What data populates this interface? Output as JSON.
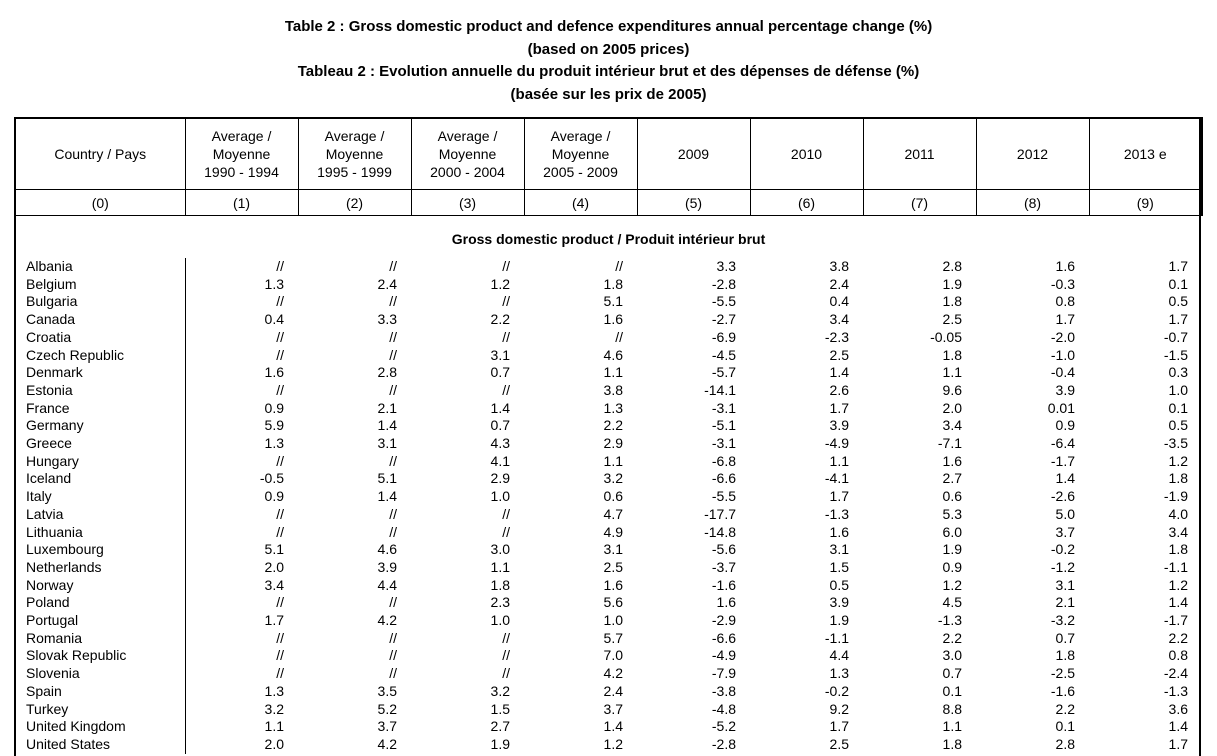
{
  "titles": {
    "line1": "Table 2 : Gross domestic product and defence expenditures annual percentage change (%)",
    "line2": "(based on 2005 prices)",
    "line3": "Tableau 2 : Evolution annuelle du produit intérieur brut et des dépenses de défense (%)",
    "line4": "(basée sur les prix de 2005)"
  },
  "headers": [
    [
      "Country  /  Pays"
    ],
    [
      "Average  /",
      "Moyenne",
      "1990 - 1994"
    ],
    [
      "Average  /",
      "Moyenne",
      "1995 - 1999"
    ],
    [
      "Average  /",
      "Moyenne",
      "2000 - 2004"
    ],
    [
      "Average  /",
      "Moyenne",
      "2005 - 2009"
    ],
    [
      "2009"
    ],
    [
      "2010"
    ],
    [
      "2011"
    ],
    [
      "2012"
    ],
    [
      "2013 e"
    ]
  ],
  "column_numbers": [
    "(0)",
    "(1)",
    "(2)",
    "(3)",
    "(4)",
    "(5)",
    "(6)",
    "(7)",
    "(8)",
    "(9)"
  ],
  "section_title": "Gross domestic product   /   Produit intérieur brut",
  "rows": [
    [
      "Albania",
      "//",
      "//",
      "//",
      "//",
      "3.3",
      "3.8",
      "2.8",
      "1.6",
      "1.7"
    ],
    [
      "Belgium",
      "1.3",
      "2.4",
      "1.2",
      "1.8",
      "-2.8",
      "2.4",
      "1.9",
      "-0.3",
      "0.1"
    ],
    [
      "Bulgaria",
      "//",
      "//",
      "//",
      "5.1",
      "-5.5",
      "0.4",
      "1.8",
      "0.8",
      "0.5"
    ],
    [
      "Canada",
      "0.4",
      "3.3",
      "2.2",
      "1.6",
      "-2.7",
      "3.4",
      "2.5",
      "1.7",
      "1.7"
    ],
    [
      "Croatia",
      "//",
      "//",
      "//",
      "//",
      "-6.9",
      "-2.3",
      "-0.05",
      "-2.0",
      "-0.7"
    ],
    [
      "Czech Republic",
      "//",
      "//",
      "3.1",
      "4.6",
      "-4.5",
      "2.5",
      "1.8",
      "-1.0",
      "-1.5"
    ],
    [
      "Denmark",
      "1.6",
      "2.8",
      "0.7",
      "1.1",
      "-5.7",
      "1.4",
      "1.1",
      "-0.4",
      "0.3"
    ],
    [
      "Estonia",
      "//",
      "//",
      "//",
      "3.8",
      "-14.1",
      "2.6",
      "9.6",
      "3.9",
      "1.0"
    ],
    [
      "France",
      "0.9",
      "2.1",
      "1.4",
      "1.3",
      "-3.1",
      "1.7",
      "2.0",
      "0.01",
      "0.1"
    ],
    [
      "Germany",
      "5.9",
      "1.4",
      "0.7",
      "2.2",
      "-5.1",
      "3.9",
      "3.4",
      "0.9",
      "0.5"
    ],
    [
      "Greece",
      "1.3",
      "3.1",
      "4.3",
      "2.9",
      "-3.1",
      "-4.9",
      "-7.1",
      "-6.4",
      "-3.5"
    ],
    [
      "Hungary",
      "//",
      "//",
      "4.1",
      "1.1",
      "-6.8",
      "1.1",
      "1.6",
      "-1.7",
      "1.2"
    ],
    [
      "Iceland",
      "-0.5",
      "5.1",
      "2.9",
      "3.2",
      "-6.6",
      "-4.1",
      "2.7",
      "1.4",
      "1.8"
    ],
    [
      "Italy",
      "0.9",
      "1.4",
      "1.0",
      "0.6",
      "-5.5",
      "1.7",
      "0.6",
      "-2.6",
      "-1.9"
    ],
    [
      "Latvia",
      "//",
      "//",
      "//",
      "4.7",
      "-17.7",
      "-1.3",
      "5.3",
      "5.0",
      "4.0"
    ],
    [
      "Lithuania",
      "//",
      "//",
      "//",
      "4.9",
      "-14.8",
      "1.6",
      "6.0",
      "3.7",
      "3.4"
    ],
    [
      "Luxembourg",
      "5.1",
      "4.6",
      "3.0",
      "3.1",
      "-5.6",
      "3.1",
      "1.9",
      "-0.2",
      "1.8"
    ],
    [
      "Netherlands",
      "2.0",
      "3.9",
      "1.1",
      "2.5",
      "-3.7",
      "1.5",
      "0.9",
      "-1.2",
      "-1.1"
    ],
    [
      "Norway",
      "3.4",
      "4.4",
      "1.8",
      "1.6",
      "-1.6",
      "0.5",
      "1.2",
      "3.1",
      "1.2"
    ],
    [
      "Poland",
      "//",
      "//",
      "2.3",
      "5.6",
      "1.6",
      "3.9",
      "4.5",
      "2.1",
      "1.4"
    ],
    [
      "Portugal",
      "1.7",
      "4.2",
      "1.0",
      "1.0",
      "-2.9",
      "1.9",
      "-1.3",
      "-3.2",
      "-1.7"
    ],
    [
      "Romania",
      "//",
      "//",
      "//",
      "5.7",
      "-6.6",
      "-1.1",
      "2.2",
      "0.7",
      "2.2"
    ],
    [
      "Slovak Republic",
      "//",
      "//",
      "//",
      "7.0",
      "-4.9",
      "4.4",
      "3.0",
      "1.8",
      "0.8"
    ],
    [
      "Slovenia",
      "//",
      "//",
      "//",
      "4.2",
      "-7.9",
      "1.3",
      "0.7",
      "-2.5",
      "-2.4"
    ],
    [
      "Spain",
      "1.3",
      "3.5",
      "3.2",
      "2.4",
      "-3.8",
      "-0.2",
      "0.1",
      "-1.6",
      "-1.3"
    ],
    [
      "Turkey",
      "3.2",
      "5.2",
      "1.5",
      "3.7",
      "-4.8",
      "9.2",
      "8.8",
      "2.2",
      "3.6"
    ],
    [
      "United Kingdom",
      "1.1",
      "3.7",
      "2.7",
      "1.4",
      "-5.2",
      "1.7",
      "1.1",
      "0.1",
      "1.4"
    ],
    [
      "United States",
      "2.0",
      "4.2",
      "1.9",
      "1.2",
      "-2.8",
      "2.5",
      "1.8",
      "2.8",
      "1.7"
    ]
  ]
}
